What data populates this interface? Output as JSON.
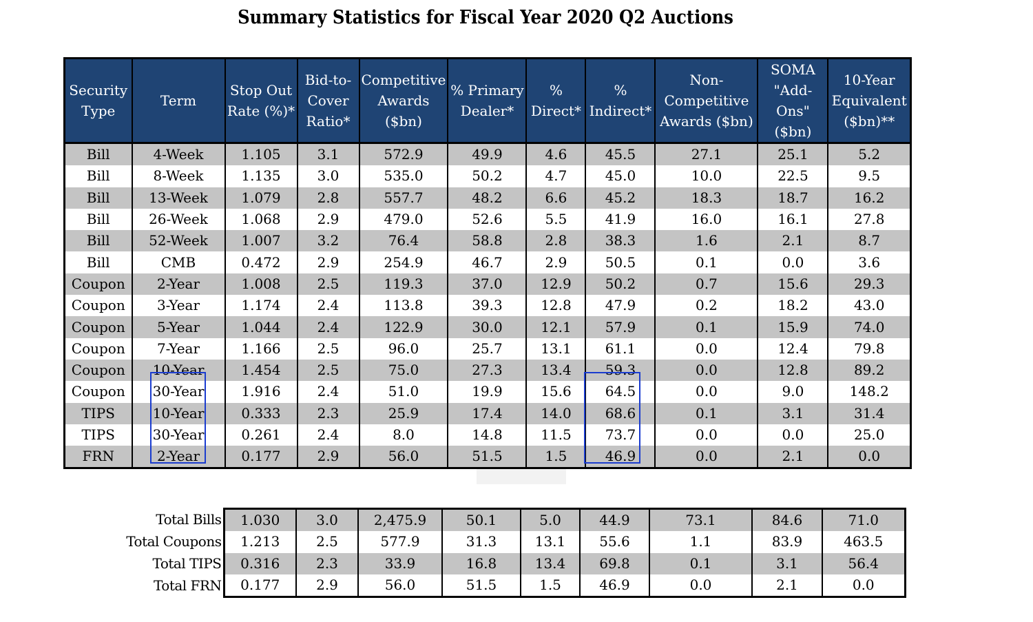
{
  "title": "Summary Statistics for Fiscal Year 2020 Q2 Auctions",
  "headers": [
    "Security Type",
    "Term",
    "Stop Out Rate (%)*",
    "Bid-to- Cover Ratio*",
    "Competitive Awards ($bn)",
    "% Primary Dealer*",
    "% Direct*",
    "% Indirect*",
    "Non- Competitive Awards ($bn)",
    "SOMA \"Add- Ons\" ($bn)",
    "10-Year Equivalent ($bn)**"
  ],
  "rows": [
    [
      "Bill",
      "4-Week",
      "1.105",
      "3.1",
      "572.9",
      "49.9",
      "4.6",
      "45.5",
      "27.1",
      "25.1",
      "5.2"
    ],
    [
      "Bill",
      "8-Week",
      "1.135",
      "3.0",
      "535.0",
      "50.2",
      "4.7",
      "45.0",
      "10.0",
      "22.5",
      "9.5"
    ],
    [
      "Bill",
      "13-Week",
      "1.079",
      "2.8",
      "557.7",
      "48.2",
      "6.6",
      "45.2",
      "18.3",
      "18.7",
      "16.2"
    ],
    [
      "Bill",
      "26-Week",
      "1.068",
      "2.9",
      "479.0",
      "52.6",
      "5.5",
      "41.9",
      "16.0",
      "16.1",
      "27.8"
    ],
    [
      "Bill",
      "52-Week",
      "1.007",
      "3.2",
      "76.4",
      "58.8",
      "2.8",
      "38.3",
      "1.6",
      "2.1",
      "8.7"
    ],
    [
      "Bill",
      "CMB",
      "0.472",
      "2.9",
      "254.9",
      "46.7",
      "2.9",
      "50.5",
      "0.1",
      "0.0",
      "3.6"
    ],
    [
      "Coupon",
      "2-Year",
      "1.008",
      "2.5",
      "119.3",
      "37.0",
      "12.9",
      "50.2",
      "0.7",
      "15.6",
      "29.3"
    ],
    [
      "Coupon",
      "3-Year",
      "1.174",
      "2.4",
      "113.8",
      "39.3",
      "12.8",
      "47.9",
      "0.2",
      "18.2",
      "43.0"
    ],
    [
      "Coupon",
      "5-Year",
      "1.044",
      "2.4",
      "122.9",
      "30.0",
      "12.1",
      "57.9",
      "0.1",
      "15.9",
      "74.0"
    ],
    [
      "Coupon",
      "7-Year",
      "1.166",
      "2.5",
      "96.0",
      "25.7",
      "13.1",
      "61.1",
      "0.0",
      "12.4",
      "79.8"
    ],
    [
      "Coupon",
      "10-Year",
      "1.454",
      "2.5",
      "75.0",
      "27.3",
      "13.4",
      "59.3",
      "0.0",
      "12.8",
      "89.2"
    ],
    [
      "Coupon",
      "30-Year",
      "1.916",
      "2.4",
      "51.0",
      "19.9",
      "15.6",
      "64.5",
      "0.0",
      "9.0",
      "148.2"
    ],
    [
      "TIPS",
      "10-Year",
      "0.333",
      "2.3",
      "25.9",
      "17.4",
      "14.0",
      "68.6",
      "0.1",
      "3.1",
      "31.4"
    ],
    [
      "TIPS",
      "30-Year",
      "0.261",
      "2.4",
      "8.0",
      "14.8",
      "11.5",
      "73.7",
      "0.0",
      "0.0",
      "25.0"
    ],
    [
      "FRN",
      "2-Year",
      "0.177",
      "2.9",
      "56.0",
      "51.5",
      "1.5",
      "46.9",
      "0.0",
      "2.1",
      "0.0"
    ]
  ],
  "totals": [
    [
      "Total Bills",
      "1.030",
      "3.0",
      "2,475.9",
      "50.1",
      "5.0",
      "44.9",
      "73.1",
      "84.6",
      "71.0"
    ],
    [
      "Total Coupons",
      "1.213",
      "2.5",
      "577.9",
      "31.3",
      "13.1",
      "55.6",
      "1.1",
      "83.9",
      "463.5"
    ],
    [
      "Total TIPS",
      "0.316",
      "2.3",
      "33.9",
      "16.8",
      "13.4",
      "69.8",
      "0.1",
      "3.1",
      "56.4"
    ],
    [
      "Total FRN",
      "0.177",
      "2.9",
      "56.0",
      "51.5",
      "1.5",
      "46.9",
      "0.0",
      "2.1",
      "0.0"
    ]
  ],
  "colors": {
    "header_bg": "#1f4474",
    "stripe": "#c4c4c4",
    "highlight": "#1a3ccf"
  }
}
